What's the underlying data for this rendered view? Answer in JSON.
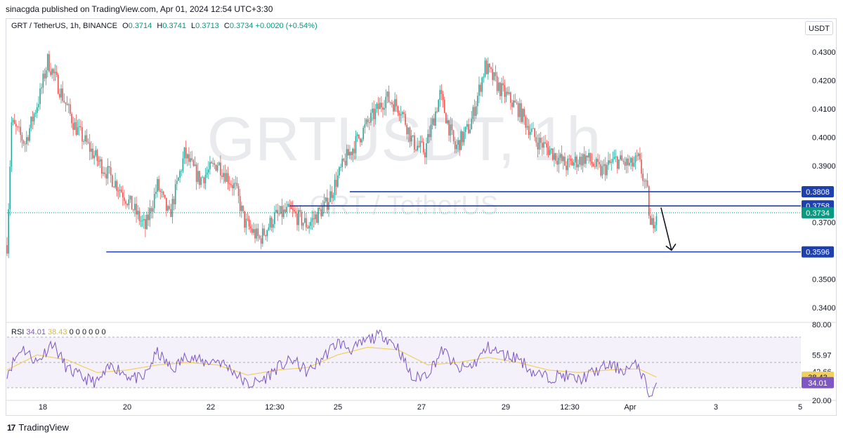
{
  "publisher": "sinacgda published on TradingView.com, Apr 01, 2024 12:54 UTC+3:30",
  "legend": {
    "symbol": "GRT / TetherUS, 1h, BINANCE",
    "o_label": "O",
    "o": "0.3714",
    "h_label": "H",
    "h": "0.3741",
    "l_label": "L",
    "l": "0.3713",
    "c_label": "C",
    "c": "0.3734",
    "change": "+0.0020 (+0.54%)"
  },
  "currency_button": "USDT",
  "watermark": {
    "big": "GRTUSDT, 1h",
    "small": "GRT / TetherUS"
  },
  "footer": {
    "brand": "TradingView"
  },
  "colors": {
    "up": "#26a69a",
    "down": "#ef5350",
    "levels": "#1e40af",
    "rsi": "#7e57c2",
    "rsi_ma": "#f0d060",
    "current": "#089981"
  },
  "chart_data": [
    {
      "type": "candlestick",
      "title": "GRT / TetherUS, 1h, BINANCE",
      "ylim": [
        0.335,
        0.435
      ],
      "y_ticks": [
        "0.3400",
        "0.3500",
        "0.3700",
        "0.3900",
        "0.4000",
        "0.4100",
        "0.4200",
        "0.4300"
      ],
      "x_ticks": [
        "18",
        "20",
        "22",
        "12:30",
        "25",
        "27",
        "29",
        "12:30",
        "Apr",
        "3",
        "5"
      ],
      "close_path": [
        {
          "x": 0,
          "y": 0.362
        },
        {
          "x": 3,
          "y": 0.405
        },
        {
          "x": 12,
          "y": 0.398
        },
        {
          "x": 22,
          "y": 0.415
        },
        {
          "x": 27,
          "y": 0.427
        },
        {
          "x": 35,
          "y": 0.417
        },
        {
          "x": 45,
          "y": 0.404
        },
        {
          "x": 60,
          "y": 0.392
        },
        {
          "x": 75,
          "y": 0.382
        },
        {
          "x": 85,
          "y": 0.374
        },
        {
          "x": 92,
          "y": 0.368
        },
        {
          "x": 100,
          "y": 0.383
        },
        {
          "x": 108,
          "y": 0.372
        },
        {
          "x": 118,
          "y": 0.394
        },
        {
          "x": 128,
          "y": 0.385
        },
        {
          "x": 140,
          "y": 0.391
        },
        {
          "x": 152,
          "y": 0.382
        },
        {
          "x": 158,
          "y": 0.37
        },
        {
          "x": 168,
          "y": 0.364
        },
        {
          "x": 178,
          "y": 0.372
        },
        {
          "x": 188,
          "y": 0.374
        },
        {
          "x": 200,
          "y": 0.369
        },
        {
          "x": 212,
          "y": 0.376
        },
        {
          "x": 225,
          "y": 0.392
        },
        {
          "x": 240,
          "y": 0.405
        },
        {
          "x": 252,
          "y": 0.414
        },
        {
          "x": 262,
          "y": 0.41
        },
        {
          "x": 270,
          "y": 0.398
        },
        {
          "x": 278,
          "y": 0.395
        },
        {
          "x": 288,
          "y": 0.415
        },
        {
          "x": 298,
          "y": 0.396
        },
        {
          "x": 308,
          "y": 0.404
        },
        {
          "x": 318,
          "y": 0.425
        },
        {
          "x": 328,
          "y": 0.417
        },
        {
          "x": 340,
          "y": 0.41
        },
        {
          "x": 352,
          "y": 0.399
        },
        {
          "x": 362,
          "y": 0.395
        },
        {
          "x": 372,
          "y": 0.39
        },
        {
          "x": 385,
          "y": 0.393
        },
        {
          "x": 395,
          "y": 0.388
        },
        {
          "x": 405,
          "y": 0.392
        },
        {
          "x": 415,
          "y": 0.39
        },
        {
          "x": 420,
          "y": 0.392
        },
        {
          "x": 426,
          "y": 0.38
        },
        {
          "x": 428,
          "y": 0.368
        },
        {
          "x": 432,
          "y": 0.3734
        }
      ],
      "horizontal_levels": [
        {
          "value": 0.3808,
          "label": "0.3808"
        },
        {
          "value": 0.3758,
          "label": "0.3758"
        },
        {
          "value": 0.3596,
          "label": "0.3596"
        }
      ],
      "current_price": {
        "value": 0.3734,
        "label": "0.3734"
      },
      "projection_arrow": {
        "from": 0.3752,
        "to": 0.3602
      }
    },
    {
      "type": "line",
      "title": "RSI",
      "legend": {
        "name": "RSI",
        "rsi": "34.01",
        "ma": "38.43",
        "extra": "0 0 0 0 0 0"
      },
      "ylim": [
        20,
        80
      ],
      "y_ticks": [
        "80.00",
        "55.97",
        "42.66",
        "20.00"
      ],
      "bands": {
        "upper": 70,
        "lower": 30
      },
      "series": [
        {
          "name": "RSI",
          "values": [
            {
              "x": 0,
              "y": 42
            },
            {
              "x": 10,
              "y": 62
            },
            {
              "x": 20,
              "y": 50
            },
            {
              "x": 30,
              "y": 66
            },
            {
              "x": 40,
              "y": 45
            },
            {
              "x": 50,
              "y": 38
            },
            {
              "x": 60,
              "y": 34
            },
            {
              "x": 70,
              "y": 48
            },
            {
              "x": 80,
              "y": 40
            },
            {
              "x": 90,
              "y": 36
            },
            {
              "x": 100,
              "y": 58
            },
            {
              "x": 110,
              "y": 44
            },
            {
              "x": 120,
              "y": 56
            },
            {
              "x": 130,
              "y": 50
            },
            {
              "x": 140,
              "y": 52
            },
            {
              "x": 150,
              "y": 44
            },
            {
              "x": 160,
              "y": 32
            },
            {
              "x": 170,
              "y": 36
            },
            {
              "x": 180,
              "y": 46
            },
            {
              "x": 190,
              "y": 52
            },
            {
              "x": 200,
              "y": 42
            },
            {
              "x": 210,
              "y": 54
            },
            {
              "x": 220,
              "y": 66
            },
            {
              "x": 230,
              "y": 60
            },
            {
              "x": 240,
              "y": 68
            },
            {
              "x": 250,
              "y": 72
            },
            {
              "x": 260,
              "y": 62
            },
            {
              "x": 270,
              "y": 36
            },
            {
              "x": 280,
              "y": 42
            },
            {
              "x": 290,
              "y": 60
            },
            {
              "x": 300,
              "y": 44
            },
            {
              "x": 310,
              "y": 48
            },
            {
              "x": 320,
              "y": 62
            },
            {
              "x": 330,
              "y": 56
            },
            {
              "x": 340,
              "y": 54
            },
            {
              "x": 350,
              "y": 42
            },
            {
              "x": 360,
              "y": 38
            },
            {
              "x": 370,
              "y": 40
            },
            {
              "x": 380,
              "y": 36
            },
            {
              "x": 390,
              "y": 42
            },
            {
              "x": 400,
              "y": 48
            },
            {
              "x": 410,
              "y": 44
            },
            {
              "x": 420,
              "y": 48
            },
            {
              "x": 426,
              "y": 30
            },
            {
              "x": 428,
              "y": 22
            },
            {
              "x": 432,
              "y": 34.01
            }
          ]
        },
        {
          "name": "RSI-based MA",
          "values": [
            {
              "x": 0,
              "y": 44
            },
            {
              "x": 20,
              "y": 56
            },
            {
              "x": 40,
              "y": 52
            },
            {
              "x": 60,
              "y": 42
            },
            {
              "x": 80,
              "y": 44
            },
            {
              "x": 100,
              "y": 48
            },
            {
              "x": 120,
              "y": 50
            },
            {
              "x": 140,
              "y": 48
            },
            {
              "x": 160,
              "y": 40
            },
            {
              "x": 180,
              "y": 44
            },
            {
              "x": 200,
              "y": 46
            },
            {
              "x": 220,
              "y": 56
            },
            {
              "x": 240,
              "y": 62
            },
            {
              "x": 260,
              "y": 60
            },
            {
              "x": 280,
              "y": 48
            },
            {
              "x": 300,
              "y": 50
            },
            {
              "x": 320,
              "y": 54
            },
            {
              "x": 340,
              "y": 50
            },
            {
              "x": 360,
              "y": 44
            },
            {
              "x": 380,
              "y": 42
            },
            {
              "x": 400,
              "y": 44
            },
            {
              "x": 420,
              "y": 45
            },
            {
              "x": 432,
              "y": 38.43
            }
          ]
        }
      ]
    }
  ]
}
